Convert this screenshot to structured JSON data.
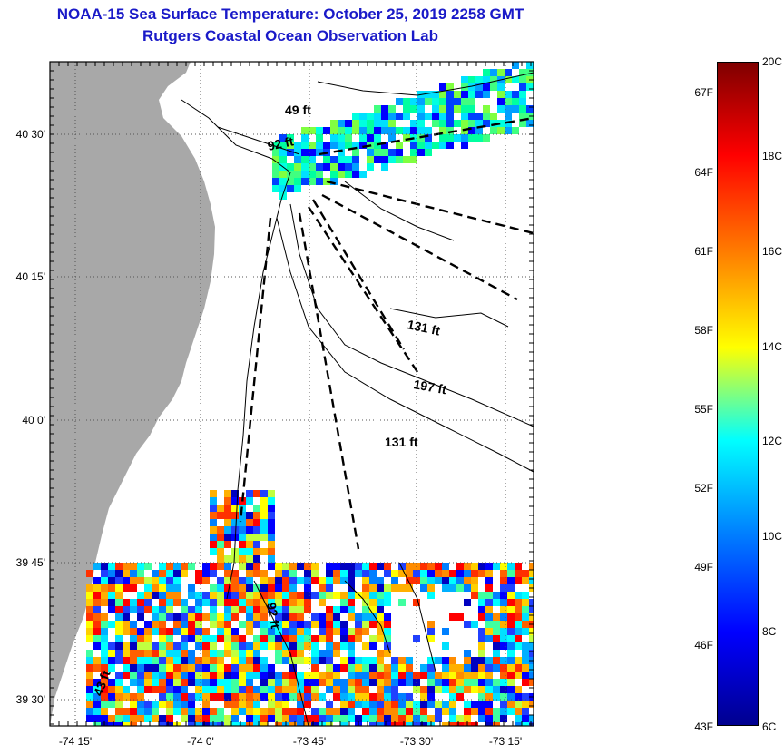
{
  "title_line1": "NOAA-15 Sea Surface Temperature:  October 25, 2019 2258 GMT",
  "title_line2": "Rutgers Coastal Ocean Observation Lab",
  "lat_labels": [
    "40 30'",
    "40 15'",
    "40 0'",
    "39 45'",
    "39 30'"
  ],
  "lon_labels": [
    "-74 15'",
    "-74 0'",
    "-73 45'",
    "-73 30'",
    "-73 15'"
  ],
  "depth_labels": [
    {
      "text": "49 ft"
    },
    {
      "text": "92 ft"
    },
    {
      "text": "131 ft"
    },
    {
      "text": "197 ft"
    },
    {
      "text": "131 ft"
    },
    {
      "text": "92 ft"
    },
    {
      "text": "43 ft"
    }
  ],
  "colorbar": {
    "fahrenheit": [
      "67F",
      "64F",
      "61F",
      "58F",
      "55F",
      "52F",
      "49F",
      "46F",
      "43F"
    ],
    "celsius": [
      "20C",
      "18C",
      "16C",
      "14C",
      "12C",
      "10C",
      "8C",
      "6C"
    ],
    "colors_top_to_bottom": [
      "#7f0000",
      "#ff0000",
      "#ff8000",
      "#ffff00",
      "#00ffff",
      "#0080ff",
      "#0000ff",
      "#00008f"
    ]
  },
  "colors": {
    "land": "#a8a8a8",
    "title": "#1a1ac8",
    "grid": "#555555"
  }
}
